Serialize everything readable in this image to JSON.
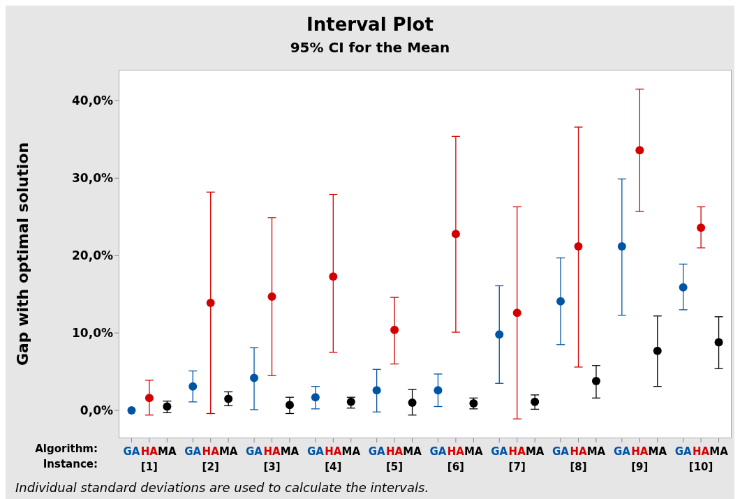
{
  "chart_data": {
    "type": "scatter",
    "title": "Interval Plot",
    "subtitle": "95% CI for the Mean",
    "ylabel": "Gap with optimal solution",
    "categories": [
      "[1]",
      "[2]",
      "[3]",
      "[4]",
      "[5]",
      "[6]",
      "[7]",
      "[8]",
      "[9]",
      "[10]"
    ],
    "series": [
      {
        "name": "GA",
        "color": "#0054a6",
        "values": [
          0.0,
          3.1,
          4.2,
          1.7,
          2.6,
          2.6,
          9.8,
          14.1,
          21.2,
          15.9
        ],
        "errors": [
          null,
          [
            1.1,
            5.1
          ],
          [
            0.1,
            8.1
          ],
          [
            0.2,
            3.1
          ],
          [
            -0.2,
            5.3
          ],
          [
            0.5,
            4.7
          ],
          [
            3.5,
            16.1
          ],
          [
            8.5,
            19.7
          ],
          [
            12.3,
            29.9
          ],
          [
            13.0,
            18.9
          ]
        ]
      },
      {
        "name": "HA",
        "color": "#d40000",
        "values": [
          1.6,
          13.9,
          14.7,
          17.3,
          10.4,
          22.8,
          12.6,
          21.2,
          33.6,
          23.6
        ],
        "errors": [
          [
            -0.6,
            3.9
          ],
          [
            -0.4,
            28.2
          ],
          [
            4.5,
            24.9
          ],
          [
            7.5,
            27.9
          ],
          [
            6.0,
            14.6
          ],
          [
            10.1,
            35.4
          ],
          [
            -1.1,
            26.3
          ],
          [
            5.6,
            36.6
          ],
          [
            25.7,
            41.5
          ],
          [
            21.0,
            26.3
          ]
        ]
      },
      {
        "name": "MA",
        "color": "#000000",
        "values": [
          0.5,
          1.5,
          0.7,
          1.1,
          1.0,
          0.9,
          1.1,
          3.8,
          7.7,
          8.8
        ],
        "errors": [
          [
            -0.3,
            1.2
          ],
          [
            0.6,
            2.4
          ],
          [
            -0.4,
            1.7
          ],
          [
            0.3,
            1.7
          ],
          [
            -0.6,
            2.7
          ],
          [
            0.2,
            1.6
          ],
          [
            0.15,
            2.0
          ],
          [
            1.6,
            5.8
          ],
          [
            3.1,
            12.2
          ],
          [
            5.4,
            12.1
          ]
        ]
      }
    ],
    "ylim": [
      -3.6,
      44
    ],
    "yticks": [
      {
        "value": 0,
        "label": "0,0%"
      },
      {
        "value": 10,
        "label": "10,0%"
      },
      {
        "value": 20,
        "label": "20,0%"
      },
      {
        "value": 30,
        "label": "30,0%"
      },
      {
        "value": 40,
        "label": "40,0%"
      }
    ],
    "marker": "circle",
    "grid": false,
    "legend": false,
    "annotations": [
      "Algorithm:",
      "Instance:",
      "Individual standard deviations are used to calculate the intervals."
    ]
  }
}
